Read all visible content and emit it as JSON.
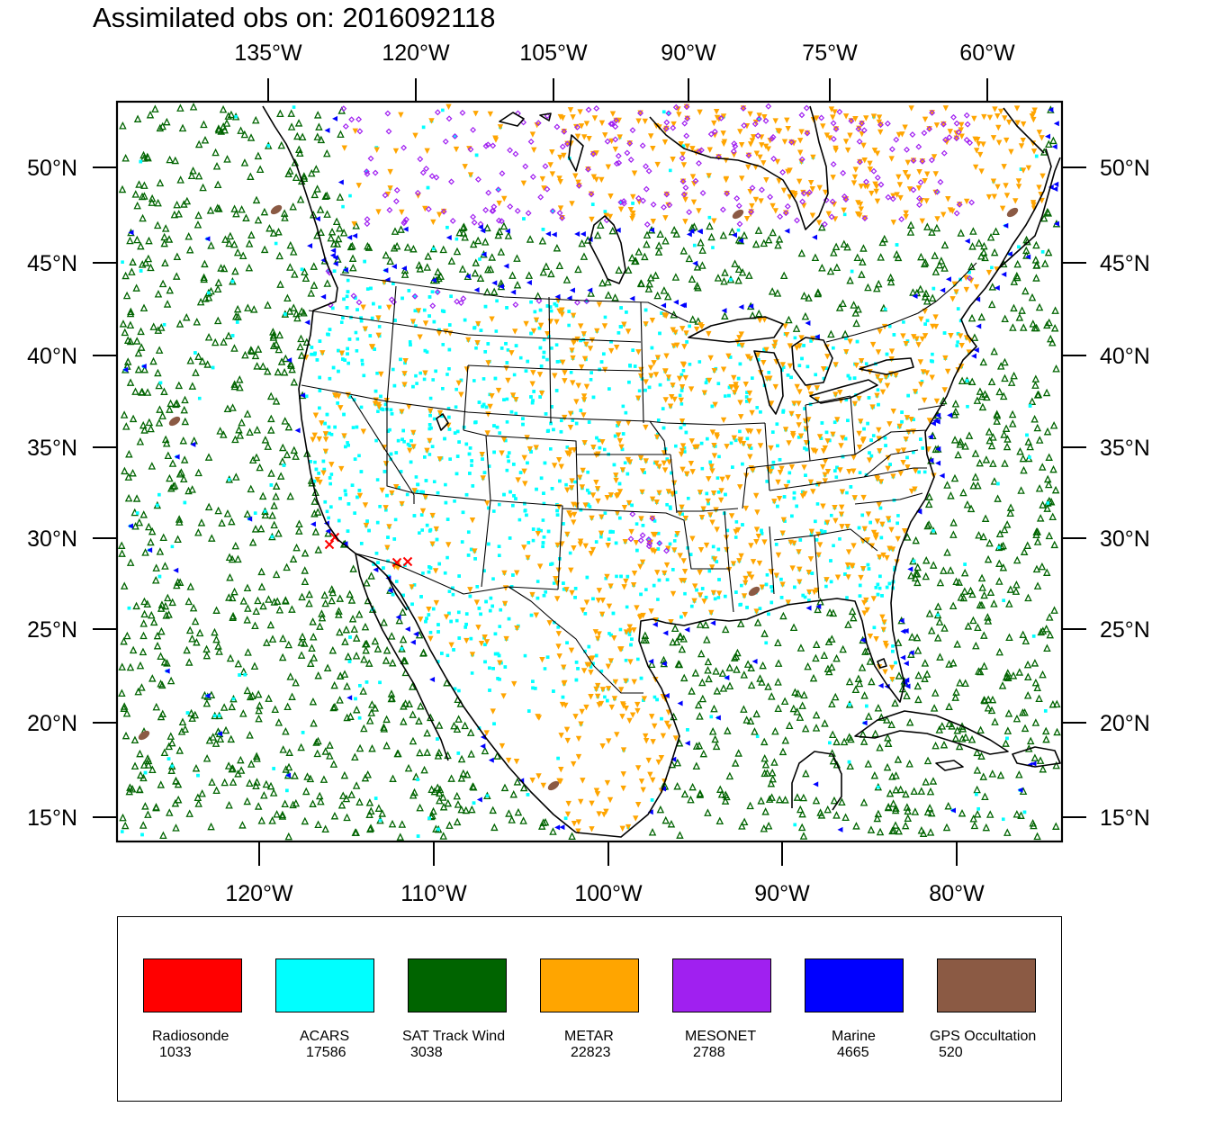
{
  "title": "Assimilated obs on: 2016092118",
  "map": {
    "top_lon_ticks": [
      "135°W",
      "120°W",
      "105°W",
      "90°W",
      "75°W",
      "60°W"
    ],
    "bottom_lon_ticks": [
      "120°W",
      "110°W",
      "100°W",
      "90°W",
      "80°W"
    ],
    "lat_ticks": [
      "50°N",
      "45°N",
      "40°N",
      "35°N",
      "30°N",
      "25°N",
      "20°N",
      "15°N"
    ],
    "background": "#ffffff",
    "coastline_color": "#000000"
  },
  "legend": [
    {
      "name": "Radiosonde",
      "count": "1033",
      "color": "#ff0000",
      "marker": "x-mark"
    },
    {
      "name": "ACARS",
      "count": "17586",
      "color": "#00ffff",
      "marker": "square-dot"
    },
    {
      "name": "SAT Track Wind",
      "count": "3038",
      "color": "#006400",
      "marker": "open-triangle"
    },
    {
      "name": "METAR",
      "count": "22823",
      "color": "#ffa500",
      "marker": "down-triangle"
    },
    {
      "name": "MESONET",
      "count": "2788",
      "color": "#a020f0",
      "marker": "open-diamond"
    },
    {
      "name": "Marine",
      "count": "4665",
      "color": "#0000ff",
      "marker": "left-triangle"
    },
    {
      "name": "GPS Occultation",
      "count": "520",
      "color": "#8b5a44",
      "marker": "oblong-blob"
    }
  ]
}
